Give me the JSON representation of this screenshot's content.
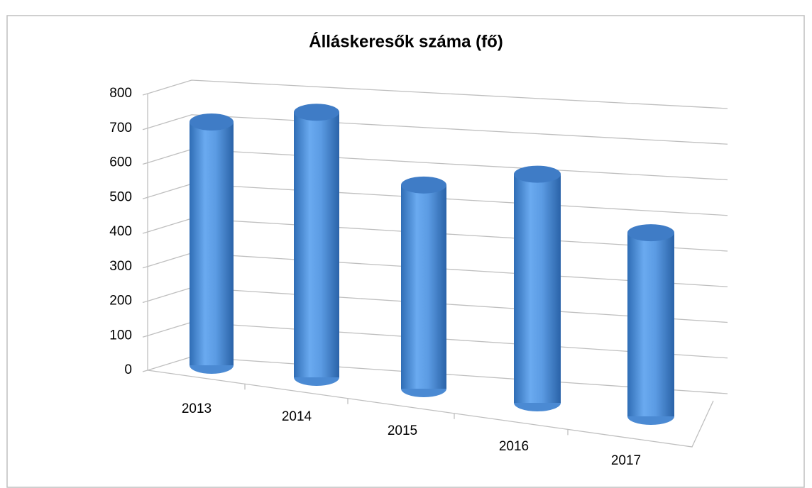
{
  "chart_data": {
    "type": "bar",
    "title": "Álláskeresők száma (fő)",
    "categories": [
      "2013",
      "2014",
      "2015",
      "2016",
      "2017"
    ],
    "values": [
      690,
      730,
      545,
      595,
      465
    ],
    "color": "#4a8fd9",
    "ylim": [
      0,
      800
    ],
    "yticks": [
      0,
      100,
      200,
      300,
      400,
      500,
      600,
      700,
      800
    ],
    "grid": true
  }
}
